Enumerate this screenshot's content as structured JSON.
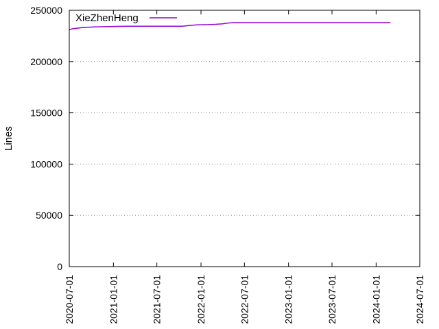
{
  "chart_data": {
    "type": "line",
    "ylabel": "Lines",
    "xlabel": "",
    "title": "",
    "ylim": [
      0,
      250000
    ],
    "xlim": [
      "2020-07-01",
      "2024-07-01"
    ],
    "y_ticks": [
      0,
      50000,
      100000,
      150000,
      200000,
      250000
    ],
    "y_tick_labels": [
      "0",
      "50000",
      "100000",
      "150000",
      "200000",
      "250000"
    ],
    "x_ticks": [
      "2020-07-01",
      "2021-01-01",
      "2021-07-01",
      "2022-01-01",
      "2022-07-01",
      "2023-01-01",
      "2023-07-01",
      "2024-01-01",
      "2024-07-01"
    ],
    "grid": "horizontal dotted",
    "legend_position": "top-left",
    "series": [
      {
        "name": "XieZhenHeng",
        "color": "#9400d3",
        "x": [
          "2020-07-01",
          "2020-07-15",
          "2020-08-01",
          "2020-08-20",
          "2020-09-15",
          "2020-10-15",
          "2020-12-01",
          "2021-01-15",
          "2021-03-01",
          "2021-06-01",
          "2021-09-01",
          "2021-10-15",
          "2021-11-15",
          "2021-12-15",
          "2022-02-01",
          "2022-03-01",
          "2022-04-01",
          "2022-04-20",
          "2022-05-15",
          "2022-07-01",
          "2023-01-01",
          "2023-07-01",
          "2024-01-01",
          "2024-03-01"
        ],
        "values": [
          231000,
          232000,
          232500,
          233000,
          233500,
          233800,
          234000,
          234300,
          234500,
          234500,
          234500,
          234500,
          235200,
          235800,
          236000,
          236300,
          236800,
          237500,
          238000,
          238000,
          238000,
          238000,
          238000,
          238000
        ]
      }
    ]
  }
}
